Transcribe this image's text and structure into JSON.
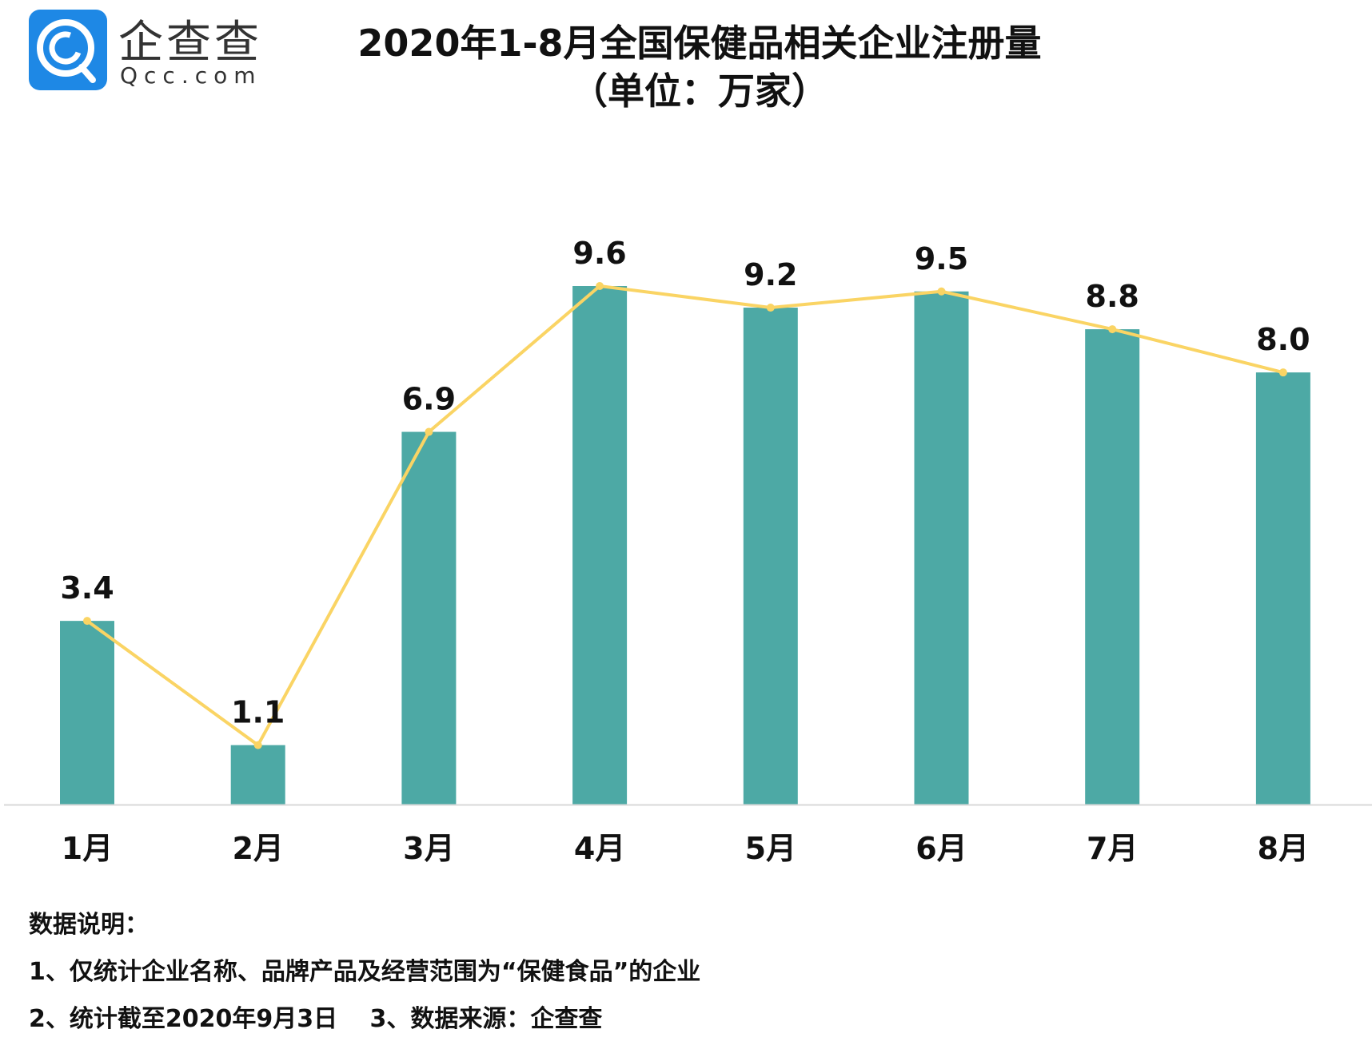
{
  "logo": {
    "brand_cn": "企查查",
    "brand_en": "Qcc.com",
    "color": "#1E88E5"
  },
  "chart_data": {
    "type": "bar",
    "title": "2020年1-8月全国保健品相关企业注册量",
    "subtitle": "（单位：万家）",
    "categories": [
      "1月",
      "2月",
      "3月",
      "4月",
      "5月",
      "6月",
      "7月",
      "8月"
    ],
    "values": [
      3.4,
      1.1,
      6.9,
      9.6,
      9.2,
      9.5,
      8.8,
      8.0
    ],
    "data_labels": [
      "3.4",
      "1.1",
      "6.9",
      "9.6",
      "9.2",
      "9.5",
      "8.8",
      "8.0"
    ],
    "overlay_line": true,
    "ylim": [
      0,
      9.6
    ],
    "grid": false,
    "colors": {
      "bar": "#4DA9A5",
      "line": "#FAD464",
      "axis": "#D9D9D9"
    }
  },
  "notes": {
    "heading": "数据说明：",
    "line1": "1、仅统计企业名称、品牌产品及经营范围为“保健食品”的企业",
    "line2": "2、统计截至2020年9月3日　 3、数据来源：企查查"
  }
}
